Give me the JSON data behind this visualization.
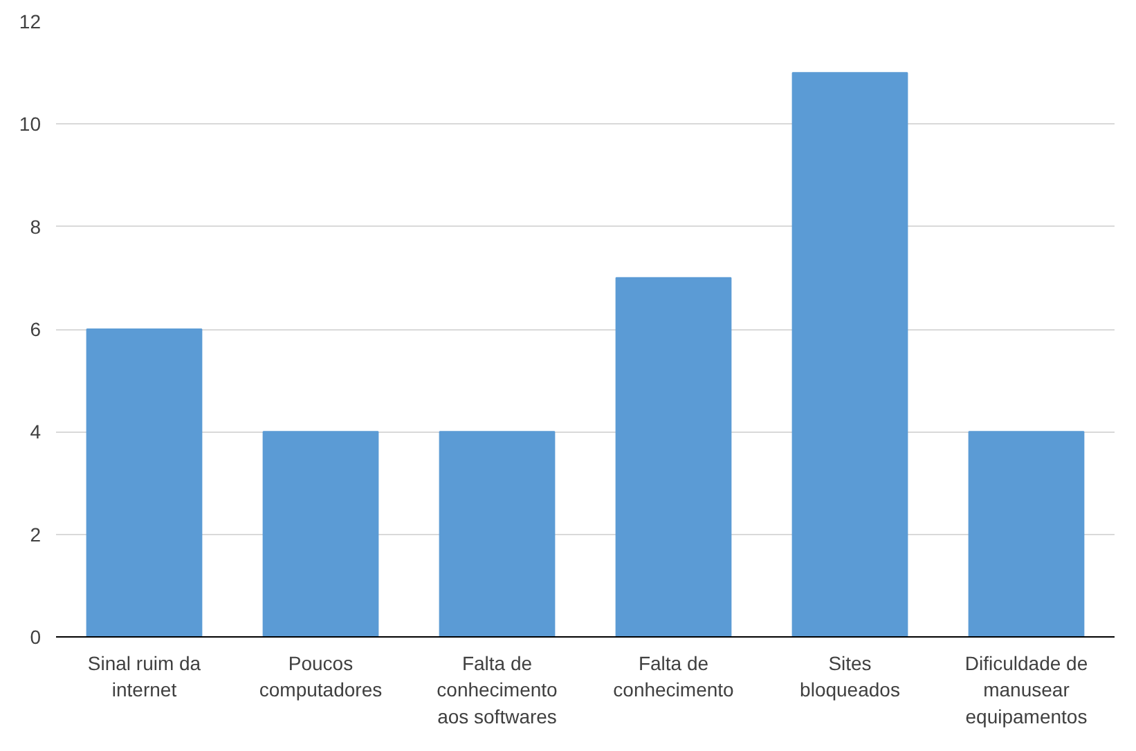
{
  "chart_data": {
    "type": "bar",
    "categories": [
      "Sinal ruim da internet",
      "Poucos computadores",
      "Falta de conhecimento aos softwares",
      "Falta de conhecimento",
      "Sites bloqueados",
      "Dificuldade de manusear equipamentos"
    ],
    "values": [
      6,
      4,
      4,
      7,
      11,
      4
    ],
    "color": "#5b9bd5",
    "ylim": [
      0,
      12
    ],
    "yticks": [
      0,
      2,
      4,
      6,
      8,
      10,
      12
    ],
    "grid": "y"
  }
}
